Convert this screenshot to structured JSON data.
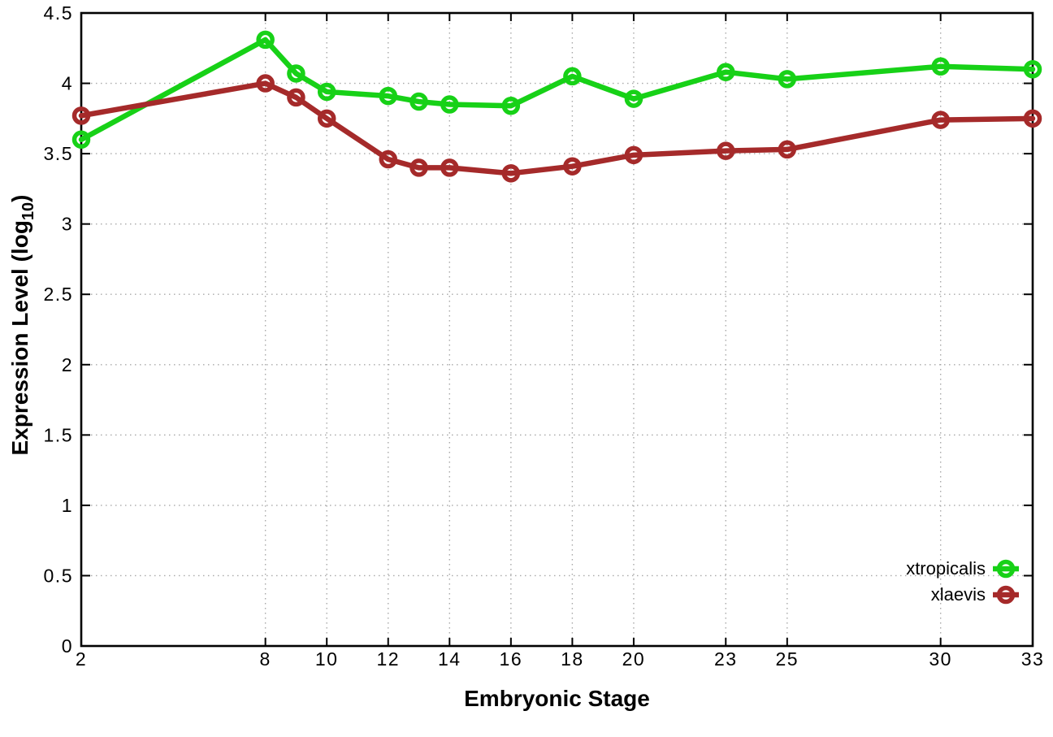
{
  "figure": {
    "background": "#ffffff",
    "axis_color": "#000000",
    "grid_color": "#a8a8a8",
    "text_color": "#000000"
  },
  "chart_data": {
    "type": "line",
    "title": "",
    "xlabel": "Embryonic Stage",
    "ylabel": {
      "prefix": "Expression Level (log",
      "subscript": "10",
      "suffix": ")"
    },
    "xlim": [
      2,
      33
    ],
    "ylim": [
      0,
      4.5
    ],
    "x_ticks": [
      2,
      8,
      10,
      12,
      14,
      16,
      18,
      20,
      23,
      25,
      30,
      33
    ],
    "y_ticks": [
      0,
      0.5,
      1,
      1.5,
      2,
      2.5,
      3,
      3.5,
      4,
      4.5
    ],
    "grid": true,
    "legend_position": "bottom-right",
    "x": [
      2,
      8,
      9,
      10,
      12,
      13,
      14,
      16,
      18,
      20,
      23,
      25,
      30,
      33
    ],
    "series": [
      {
        "name": "xtropicalis",
        "color": "#17d117",
        "values": [
          3.6,
          4.31,
          4.07,
          3.94,
          3.91,
          3.87,
          3.85,
          3.84,
          4.05,
          3.89,
          4.08,
          4.03,
          4.12,
          4.1
        ]
      },
      {
        "name": "xlaevis",
        "color": "#a52a2a",
        "values": [
          3.77,
          4.0,
          3.9,
          3.75,
          3.46,
          3.4,
          3.4,
          3.36,
          3.41,
          3.49,
          3.52,
          3.53,
          3.74,
          3.75
        ]
      }
    ]
  }
}
